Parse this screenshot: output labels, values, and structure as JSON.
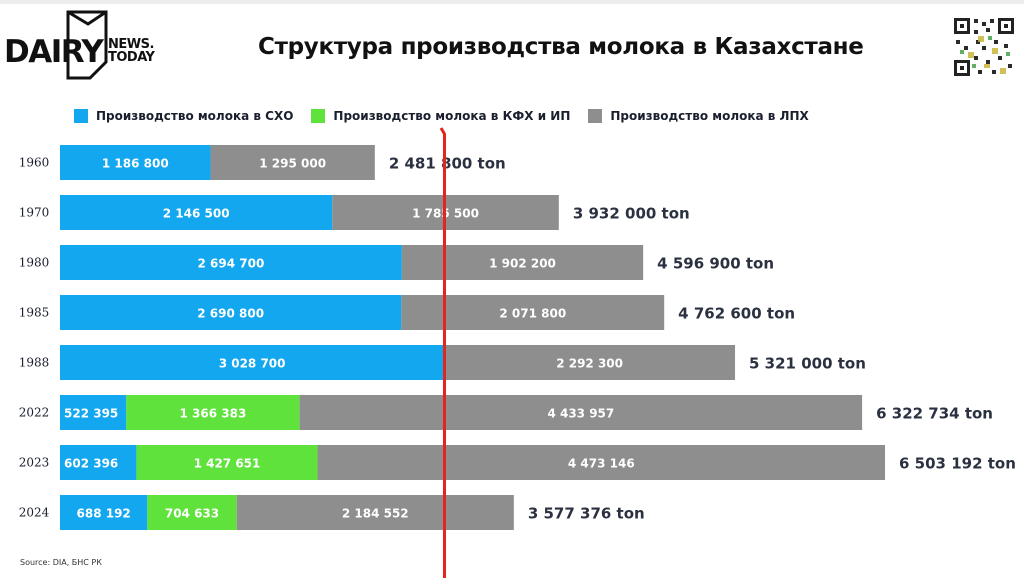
{
  "logo": {
    "brand": "DAIRY",
    "sub1": "NEWS.",
    "sub2": "TODAY"
  },
  "header": {
    "title": "Структура производства молока в Казахстане"
  },
  "qr": {
    "icon": "qr-code-icon"
  },
  "source": "Source: DIA, БНС РК",
  "colors": {
    "blue": "#12a7ef",
    "green": "#5fe23c",
    "gray": "#8e8e8e",
    "redline": "#e3261c"
  },
  "chart_data": {
    "type": "bar",
    "orientation": "horizontal",
    "stacked": true,
    "title": "Структура производства молока в Казахстане",
    "categories": [
      "1960",
      "1970",
      "1980",
      "1985",
      "1988",
      "2022",
      "2023",
      "2024"
    ],
    "series": [
      {
        "name": "Производство молока в СХО",
        "color": "#12a7ef",
        "values": [
          1186800,
          2146500,
          2694700,
          2690800,
          3028700,
          522395,
          602396,
          688192
        ],
        "labels": [
          "1 186 800",
          "2 146 500",
          "2 694 700",
          "2 690 800",
          "3 028 700",
          "522 395",
          "602 396",
          "688 192"
        ]
      },
      {
        "name": "Производство молока в КФХ и ИП",
        "color": "#5fe23c",
        "values": [
          null,
          null,
          null,
          null,
          null,
          1366383,
          1427651,
          704633
        ],
        "labels": [
          "",
          "",
          "",
          "",
          "",
          "1 366 383",
          "1 427 651",
          "704 633"
        ]
      },
      {
        "name": "Производство молока в ЛПХ",
        "color": "#8e8e8e",
        "values": [
          1295000,
          1785500,
          1902200,
          2071800,
          2292300,
          4433957,
          4473146,
          2184552
        ],
        "labels": [
          "1 295 000",
          "1 785 500",
          "1 902 200",
          "2 071 800",
          "2 292 300",
          "4 433 957",
          "4 473 146",
          "2 184 552"
        ]
      }
    ],
    "totals": [
      "2 481 800 ton",
      "3 932 000 ton",
      "4 596 900 ton",
      "4 762 600 ton",
      "5 321 000 ton",
      "6 322 734 ton",
      "6 503 192 ton",
      "3 577 376 ton"
    ],
    "total_values": [
      2481800,
      3932000,
      4596900,
      4762600,
      5321000,
      6322734,
      6503192,
      3577376
    ],
    "legend_position": "top",
    "grid": false
  }
}
